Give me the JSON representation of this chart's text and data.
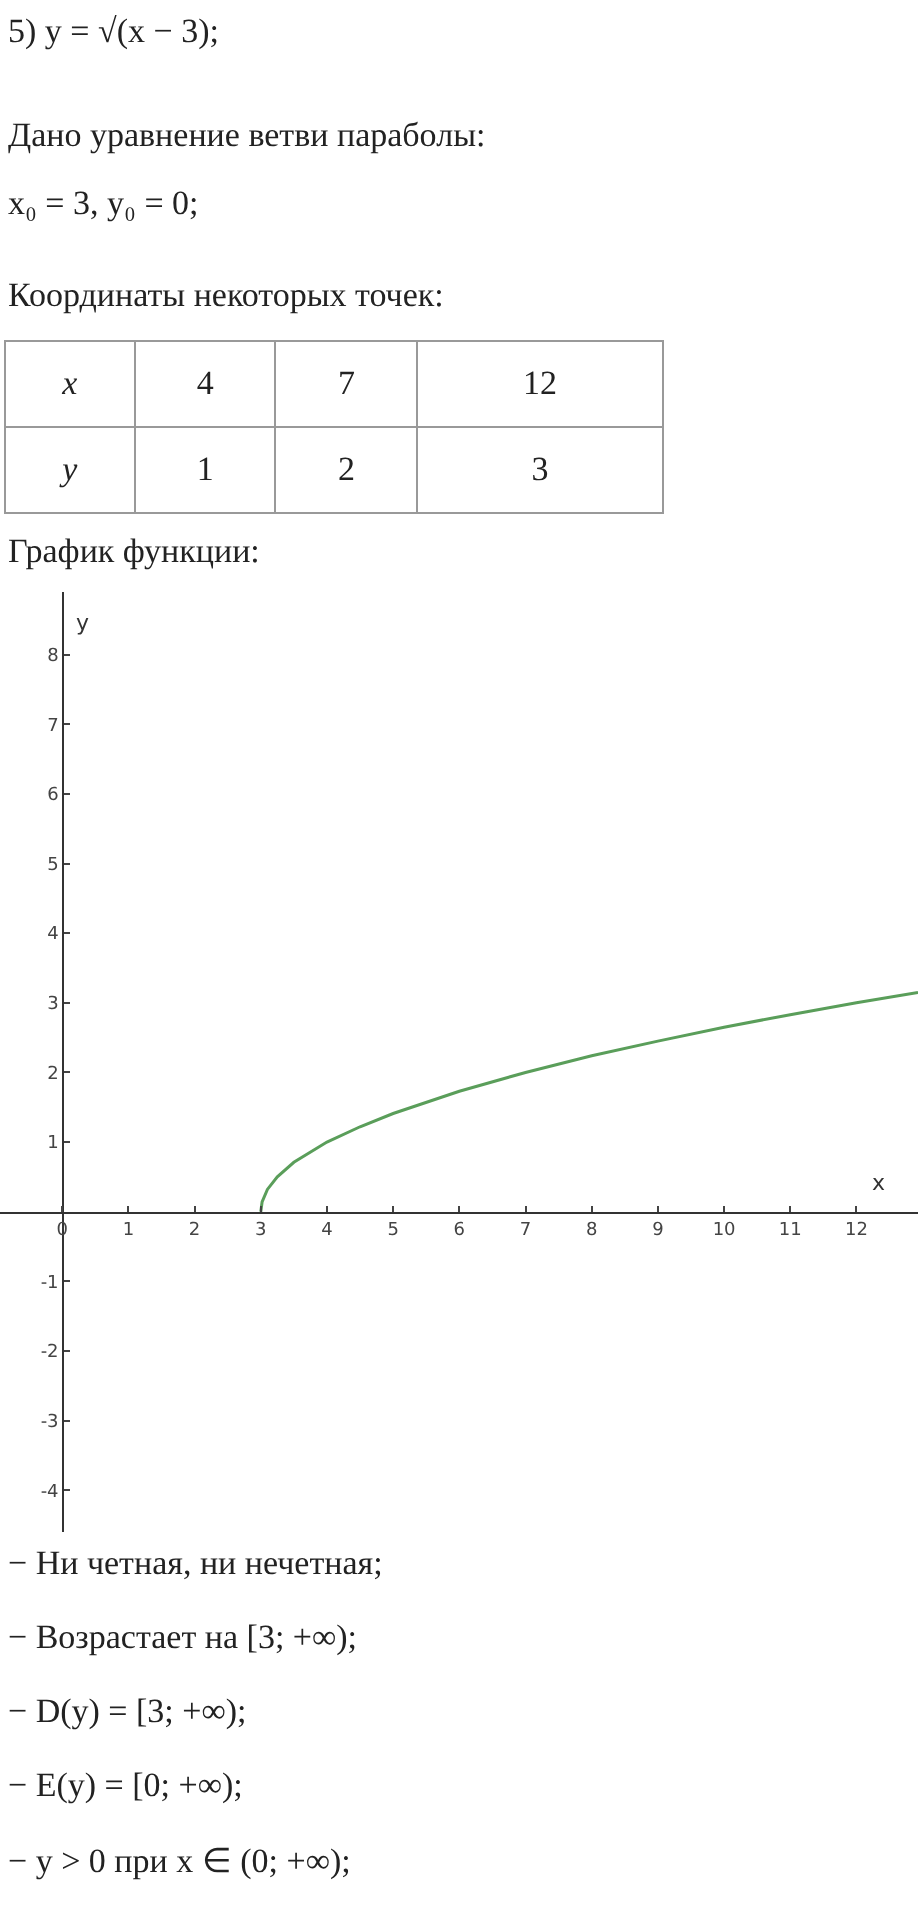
{
  "chart_data": {
    "type": "line",
    "title": "5) y = √(x − 3);",
    "annotations": [
      "Дано уравнение ветви параболы:",
      "x₀ = 3,  y₀ = 0;",
      "Координаты некоторых точек:",
      "x",
      "4",
      "7",
      "12",
      "y",
      "1",
      "2",
      "3",
      "График функции:",
      "− Ни четная, ни нечетная;",
      "− Возрастает на [3; +∞);",
      "− D(y) = [3; +∞);",
      "− E(y) = [0; +∞);",
      "− y > 0 при x ∈ (0; +∞);"
    ],
    "xlabel": "x",
    "ylabel": "y",
    "x": [
      3,
      3.02,
      3.1,
      3.25,
      3.5,
      4,
      4.5,
      5,
      6,
      7,
      8,
      9,
      10,
      11,
      12,
      12.93
    ],
    "series": [
      {
        "color": "#5a9e5a",
        "values": [
          0,
          0.14,
          0.32,
          0.5,
          0.71,
          1,
          1.22,
          1.41,
          1.73,
          2,
          2.24,
          2.45,
          2.65,
          2.83,
          3,
          3.15
        ]
      }
    ],
    "xlim": [
      -0.94,
      12.93
    ],
    "ylim": [
      -4.6,
      8.9
    ],
    "xticks": [
      0,
      1,
      2,
      3,
      4,
      5,
      6,
      7,
      8,
      9,
      10,
      11,
      12
    ],
    "yticks": [
      -4,
      -3,
      -2,
      -1,
      1,
      2,
      3,
      4,
      5,
      6,
      7,
      8
    ],
    "grid": false,
    "marker": "none",
    "line_style": "solid"
  }
}
